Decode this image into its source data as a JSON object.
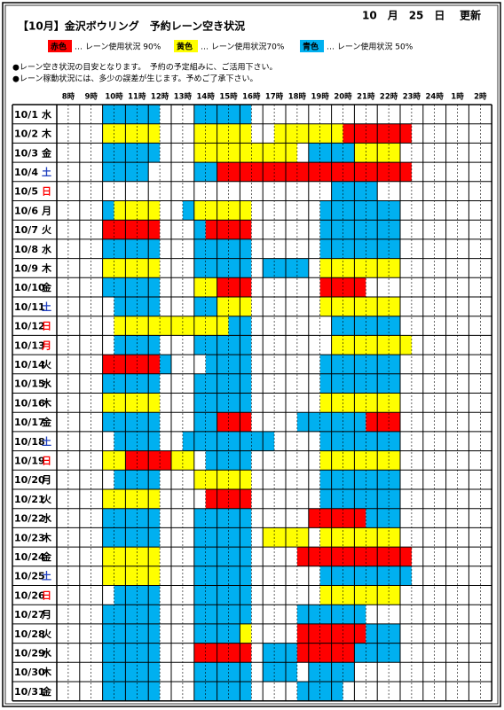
{
  "header": {
    "title": "【10月】金沢ボウリング　予約レーン空き状況",
    "date": "10　月　25　日",
    "updated": "更新"
  },
  "legend": [
    {
      "label": "赤色",
      "text": "… レーン使用状況 90%",
      "color": "#ff0000"
    },
    {
      "label": "黄色",
      "text": "… レーン使用状況70%",
      "color": "#ffff00"
    },
    {
      "label": "青色",
      "text": "… レーン使用状況 50%",
      "color": "#00b0f0"
    }
  ],
  "notes": [
    "●レーン空き状況の目安となります。　予約の予定組みに、ご活用下さい。",
    "●レーン稼動状況には、多少の誤差が生じます。予めご了承下さい。"
  ],
  "hours": [
    "8時",
    "9時",
    "10時",
    "11時",
    "12時",
    "13時",
    "14時",
    "15時",
    "16時",
    "17時",
    "18時",
    "19時",
    "20時",
    "21時",
    "22時",
    "23時",
    "24時",
    "1時",
    "2時"
  ],
  "colors": {
    "r": "#ff0000",
    "y": "#ffff00",
    "b": "#00b0f0"
  },
  "rows": [
    {
      "date": "10/1",
      "day": "水",
      "cells": [
        [
          "b",
          4,
          9
        ],
        [
          "b",
          12,
          17
        ]
      ]
    },
    {
      "date": "10/2",
      "day": "木",
      "cells": [
        [
          "y",
          4,
          9
        ],
        [
          "y",
          12,
          17
        ],
        [
          "y",
          19,
          25
        ],
        [
          "r",
          25,
          31
        ]
      ]
    },
    {
      "date": "10/3",
      "day": "金",
      "cells": [
        [
          "b",
          4,
          9
        ],
        [
          "y",
          12,
          21
        ],
        [
          "b",
          22,
          26
        ],
        [
          "y",
          26,
          30
        ]
      ]
    },
    {
      "date": "10/4",
      "day": "土",
      "day_color": "#1f3fbf",
      "cells": [
        [
          "b",
          4,
          8
        ],
        [
          "b",
          12,
          14
        ],
        [
          "r",
          14,
          31
        ]
      ]
    },
    {
      "date": "10/5",
      "day": "日",
      "day_color": "#ff0000",
      "cells": [
        [
          "b",
          24,
          28
        ]
      ]
    },
    {
      "date": "10/6",
      "day": "月",
      "cells": [
        [
          "b",
          4,
          5
        ],
        [
          "y",
          5,
          9
        ],
        [
          "b",
          11,
          12
        ],
        [
          "y",
          12,
          17
        ],
        [
          "b",
          23,
          30
        ]
      ]
    },
    {
      "date": "10/7",
      "day": "火",
      "cells": [
        [
          "r",
          4,
          9
        ],
        [
          "b",
          12,
          13
        ],
        [
          "r",
          13,
          17
        ],
        [
          "b",
          23,
          30
        ]
      ]
    },
    {
      "date": "10/8",
      "day": "水",
      "cells": [
        [
          "b",
          4,
          9
        ],
        [
          "b",
          12,
          17
        ],
        [
          "b",
          23,
          30
        ]
      ]
    },
    {
      "date": "10/9",
      "day": "木",
      "cells": [
        [
          "y",
          4,
          9
        ],
        [
          "b",
          12,
          17
        ],
        [
          "b",
          18,
          22
        ],
        [
          "y",
          23,
          30
        ]
      ]
    },
    {
      "date": "10/10",
      "day": "金",
      "cells": [
        [
          "b",
          4,
          9
        ],
        [
          "y",
          12,
          14
        ],
        [
          "r",
          14,
          17
        ],
        [
          "r",
          23,
          27
        ]
      ]
    },
    {
      "date": "10/11",
      "day": "土",
      "day_color": "#1f3fbf",
      "cells": [
        [
          "b",
          5,
          9
        ],
        [
          "b",
          12,
          14
        ],
        [
          "y",
          14,
          17
        ],
        [
          "y",
          23,
          30
        ]
      ]
    },
    {
      "date": "10/12",
      "day": "日",
      "day_color": "#ff0000",
      "cells": [
        [
          "y",
          5,
          15
        ],
        [
          "b",
          15,
          17
        ],
        [
          "b",
          24,
          30
        ]
      ]
    },
    {
      "date": "10/13",
      "day": "月",
      "day_color": "#ff0000",
      "cells": [
        [
          "b",
          5,
          9
        ],
        [
          "b",
          12,
          17
        ],
        [
          "y",
          24,
          31
        ]
      ]
    },
    {
      "date": "10/14",
      "day": "火",
      "cells": [
        [
          "r",
          4,
          9
        ],
        [
          "b",
          9,
          10
        ],
        [
          "b",
          13,
          17
        ],
        [
          "b",
          23,
          30
        ]
      ]
    },
    {
      "date": "10/15",
      "day": "水",
      "cells": [
        [
          "b",
          4,
          9
        ],
        [
          "b",
          12,
          17
        ],
        [
          "b",
          23,
          30
        ]
      ]
    },
    {
      "date": "10/16",
      "day": "木",
      "cells": [
        [
          "y",
          4,
          9
        ],
        [
          "b",
          12,
          17
        ],
        [
          "y",
          23,
          30
        ]
      ]
    },
    {
      "date": "10/17",
      "day": "金",
      "cells": [
        [
          "b",
          4,
          9
        ],
        [
          "b",
          12,
          14
        ],
        [
          "r",
          14,
          17
        ],
        [
          "b",
          21,
          27
        ],
        [
          "r",
          27,
          30
        ]
      ]
    },
    {
      "date": "10/18",
      "day": "土",
      "day_color": "#1f3fbf",
      "cells": [
        [
          "b",
          5,
          9
        ],
        [
          "b",
          11,
          19
        ],
        [
          "b",
          23,
          30
        ]
      ]
    },
    {
      "date": "10/19",
      "day": "日",
      "day_color": "#ff0000",
      "cells": [
        [
          "y",
          4,
          6
        ],
        [
          "r",
          6,
          10
        ],
        [
          "y",
          10,
          12
        ],
        [
          "b",
          13,
          17
        ],
        [
          "y",
          23,
          30
        ]
      ]
    },
    {
      "date": "10/20",
      "day": "月",
      "cells": [
        [
          "b",
          5,
          9
        ],
        [
          "y",
          12,
          17
        ],
        [
          "b",
          23,
          30
        ]
      ]
    },
    {
      "date": "10/21",
      "day": "火",
      "cells": [
        [
          "y",
          4,
          9
        ],
        [
          "r",
          13,
          17
        ],
        [
          "b",
          23,
          30
        ]
      ]
    },
    {
      "date": "10/22",
      "day": "水",
      "cells": [
        [
          "b",
          4,
          9
        ],
        [
          "b",
          12,
          17
        ],
        [
          "r",
          22,
          27
        ],
        [
          "b",
          27,
          30
        ]
      ]
    },
    {
      "date": "10/23",
      "day": "木",
      "cells": [
        [
          "b",
          4,
          9
        ],
        [
          "b",
          12,
          17
        ],
        [
          "y",
          18,
          22
        ],
        [
          "y",
          23,
          30
        ]
      ]
    },
    {
      "date": "10/24",
      "day": "金",
      "cells": [
        [
          "y",
          4,
          9
        ],
        [
          "b",
          12,
          17
        ],
        [
          "r",
          21,
          31
        ]
      ]
    },
    {
      "date": "10/25",
      "day": "土",
      "day_color": "#1f3fbf",
      "cells": [
        [
          "y",
          4,
          9
        ],
        [
          "b",
          12,
          17
        ],
        [
          "b",
          23,
          31
        ]
      ]
    },
    {
      "date": "10/26",
      "day": "日",
      "day_color": "#ff0000",
      "cells": [
        [
          "b",
          5,
          9
        ],
        [
          "b",
          12,
          17
        ],
        [
          "y",
          23,
          30
        ]
      ]
    },
    {
      "date": "10/27",
      "day": "月",
      "cells": [
        [
          "b",
          4,
          9
        ],
        [
          "b",
          12,
          17
        ],
        [
          "b",
          21,
          27
        ]
      ]
    },
    {
      "date": "10/28",
      "day": "火",
      "cells": [
        [
          "b",
          4,
          9
        ],
        [
          "b",
          12,
          16
        ],
        [
          "y",
          16,
          17
        ],
        [
          "r",
          21,
          27
        ],
        [
          "b",
          27,
          30
        ]
      ]
    },
    {
      "date": "10/29",
      "day": "水",
      "cells": [
        [
          "b",
          4,
          9
        ],
        [
          "r",
          12,
          17
        ],
        [
          "b",
          18,
          21
        ],
        [
          "r",
          21,
          26
        ],
        [
          "b",
          26,
          30
        ]
      ]
    },
    {
      "date": "10/30",
      "day": "木",
      "cells": [
        [
          "b",
          4,
          9
        ],
        [
          "b",
          12,
          17
        ],
        [
          "b",
          18,
          21
        ],
        [
          "b",
          22,
          26
        ]
      ]
    },
    {
      "date": "10/31",
      "day": "金",
      "cells": [
        [
          "b",
          4,
          9
        ],
        [
          "b",
          12,
          17
        ],
        [
          "b",
          21,
          25
        ]
      ]
    }
  ]
}
